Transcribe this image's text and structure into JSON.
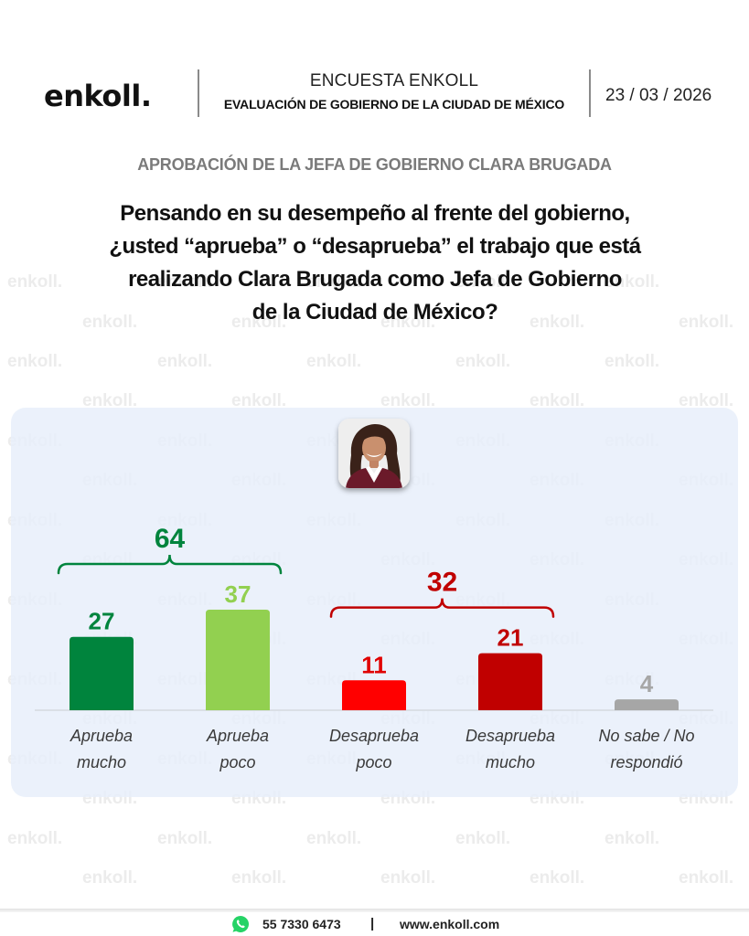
{
  "header": {
    "logo": "enkoll.",
    "survey_title": "ENCUESTA ENKOLL",
    "survey_subtitle": "EVALUACIÓN DE GOBIERNO DE LA CIUDAD DE MÉXICO",
    "date": "23 / 03 / 2026"
  },
  "subtitle": "APROBACIÓN DE LA JEFA DE GOBIERNO CLARA BRUGADA",
  "question": "Pensando en su desempeño al frente del gobierno, ¿usted “aprueba” o “desaprueba” el trabajo que está realizando Clara Brugada como Jefa de Gobierno de la Ciudad de México?",
  "question_lines": [
    "Pensando en su desempeño al frente del gobierno,",
    "¿usted “aprueba” o “desaprueba” el trabajo que está",
    "realizando Clara Brugada como Jefa de Gobierno",
    "de la Ciudad de México?"
  ],
  "watermark": "enkoll.",
  "photo": {
    "icon": "person-portrait-icon",
    "alt": "Clara Brugada"
  },
  "chart_data": {
    "type": "bar",
    "title": "APROBACIÓN DE LA JEFA DE GOBIERNO CLARA BRUGADA",
    "categories": [
      [
        "Aprueba",
        "mucho"
      ],
      [
        "Aprueba",
        "poco"
      ],
      [
        "Desaprueba",
        "poco"
      ],
      [
        "Desaprueba",
        "mucho"
      ],
      [
        "No sabe / No",
        "respondió"
      ]
    ],
    "values": [
      27,
      37,
      11,
      21,
      4
    ],
    "colors": [
      "#00843d",
      "#92d050",
      "#ff0000",
      "#c00000",
      "#a6a6a6"
    ],
    "label_colors": [
      "#00843d",
      "#92d050",
      "#e00000",
      "#c00000",
      "#a6a6a6"
    ],
    "groups": [
      {
        "label": "64",
        "value": 64,
        "members": [
          0,
          1
        ],
        "color": "#00843d"
      },
      {
        "label": "32",
        "value": 32,
        "members": [
          2,
          3
        ],
        "color": "#c00000"
      }
    ],
    "xlabel": "",
    "ylabel": "",
    "ylim": [
      0,
      40
    ],
    "grid": false,
    "legend": "none"
  },
  "footer": {
    "icon": "whatsapp-icon",
    "phone": "55 7330 6473",
    "separator": "|",
    "website": "www.enkoll.com",
    "whatsapp_color": "#25d366"
  }
}
